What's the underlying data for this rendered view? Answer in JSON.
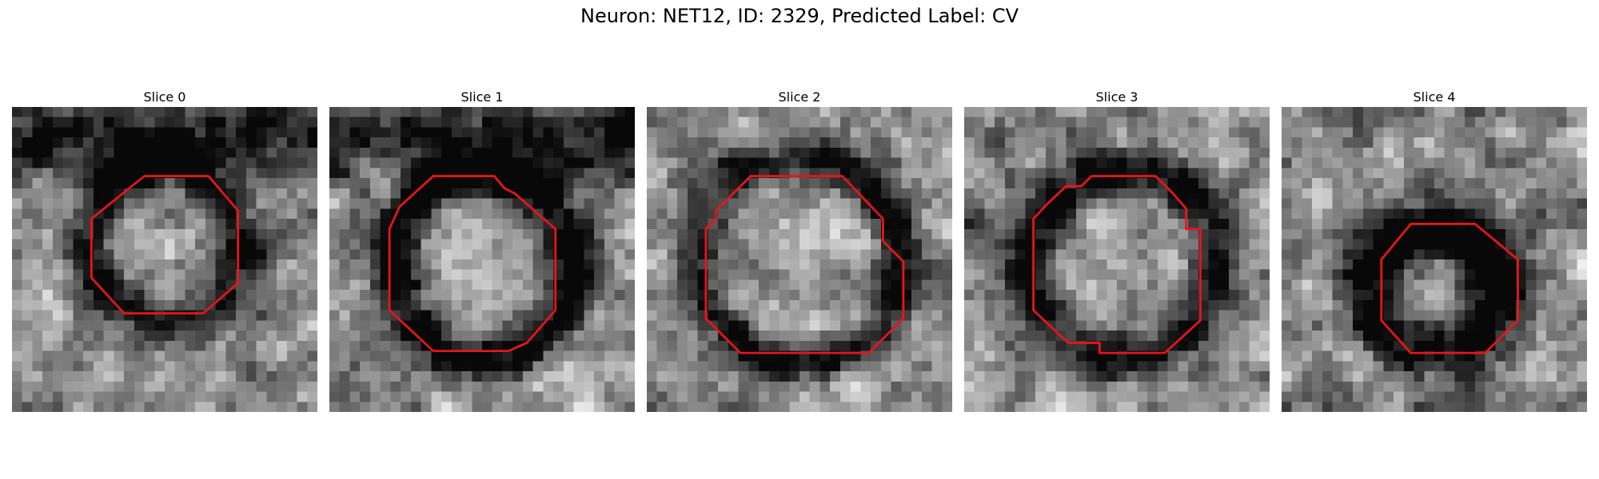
{
  "figure": {
    "title": "Neuron: NET12, ID: 2329, Predicted Label: CV"
  },
  "image": {
    "grid_size": 30,
    "colormap": "gray",
    "contour_color": "#e8141a"
  },
  "slices": [
    {
      "title": "Slice 0",
      "seed": 11,
      "dark_band": "top",
      "ring": {
        "cx": 15.0,
        "cy": 13.5,
        "r": 7.6,
        "width": 2.4,
        "darkness": 0.55
      },
      "contour": [
        [
          13,
          6.8
        ],
        [
          19.3,
          6.8
        ],
        [
          22.2,
          10.2
        ],
        [
          22.2,
          17.3
        ],
        [
          18.8,
          20.3
        ],
        [
          11,
          20.3
        ],
        [
          7.8,
          16.8
        ],
        [
          7.8,
          11
        ]
      ]
    },
    {
      "title": "Slice 1",
      "seed": 23,
      "dark_band": "top",
      "ring": {
        "cx": 15.0,
        "cy": 15.5,
        "r": 9.0,
        "width": 2.3,
        "darkness": 0.6
      },
      "contour": [
        [
          10.2,
          6.8
        ],
        [
          16.2,
          6.8
        ],
        [
          17.2,
          8
        ],
        [
          18.2,
          8.5
        ],
        [
          22.2,
          12
        ],
        [
          22.2,
          20
        ],
        [
          19.4,
          23.2
        ],
        [
          17.6,
          24
        ],
        [
          16.8,
          24
        ],
        [
          10.2,
          24
        ],
        [
          5.9,
          20
        ],
        [
          5.9,
          12
        ],
        [
          6.9,
          9.8
        ],
        [
          8,
          8.8
        ]
      ]
    },
    {
      "title": "Slice 2",
      "seed": 37,
      "dark_band": "none",
      "ring": {
        "cx": 15.0,
        "cy": 15.0,
        "r": 10.0,
        "width": 2.1,
        "darkness": 0.5
      },
      "contour": [
        [
          10.2,
          6.8
        ],
        [
          19.2,
          6.8
        ],
        [
          23.2,
          11
        ],
        [
          23.2,
          13.2
        ],
        [
          25.2,
          15.2
        ],
        [
          25.2,
          20.8
        ],
        [
          21.8,
          24.2
        ],
        [
          9.2,
          24.2
        ],
        [
          5.8,
          20.8
        ],
        [
          5.8,
          12
        ],
        [
          6.8,
          11
        ],
        [
          6.8,
          10.2
        ]
      ]
    },
    {
      "title": "Slice 3",
      "seed": 51,
      "dark_band": "none",
      "ring": {
        "cx": 15.5,
        "cy": 15.5,
        "r": 9.3,
        "width": 2.4,
        "darkness": 0.55
      },
      "contour": [
        [
          12.5,
          6.8
        ],
        [
          18.8,
          6.8
        ],
        [
          20.5,
          8.5
        ],
        [
          21.8,
          10
        ],
        [
          21.8,
          12
        ],
        [
          23.2,
          12
        ],
        [
          23.2,
          21
        ],
        [
          19.7,
          24.2
        ],
        [
          13.3,
          24.2
        ],
        [
          13.3,
          23.2
        ],
        [
          10.2,
          23.2
        ],
        [
          6.8,
          20
        ],
        [
          6.8,
          11
        ],
        [
          8.2,
          9.5
        ],
        [
          10,
          7.8
        ],
        [
          11.5,
          7.8
        ]
      ]
    },
    {
      "title": "Slice 4",
      "seed": 67,
      "dark_band": "none",
      "ring": {
        "cx": 15.0,
        "cy": 18.0,
        "r": 6.2,
        "width": 3.0,
        "darkness": 0.65
      },
      "contour": [
        [
          12.7,
          11.5
        ],
        [
          19,
          11.5
        ],
        [
          23.2,
          15
        ],
        [
          23.2,
          21
        ],
        [
          20,
          24.2
        ],
        [
          12.7,
          24.2
        ],
        [
          9.8,
          21
        ],
        [
          9.8,
          15
        ]
      ]
    }
  ]
}
